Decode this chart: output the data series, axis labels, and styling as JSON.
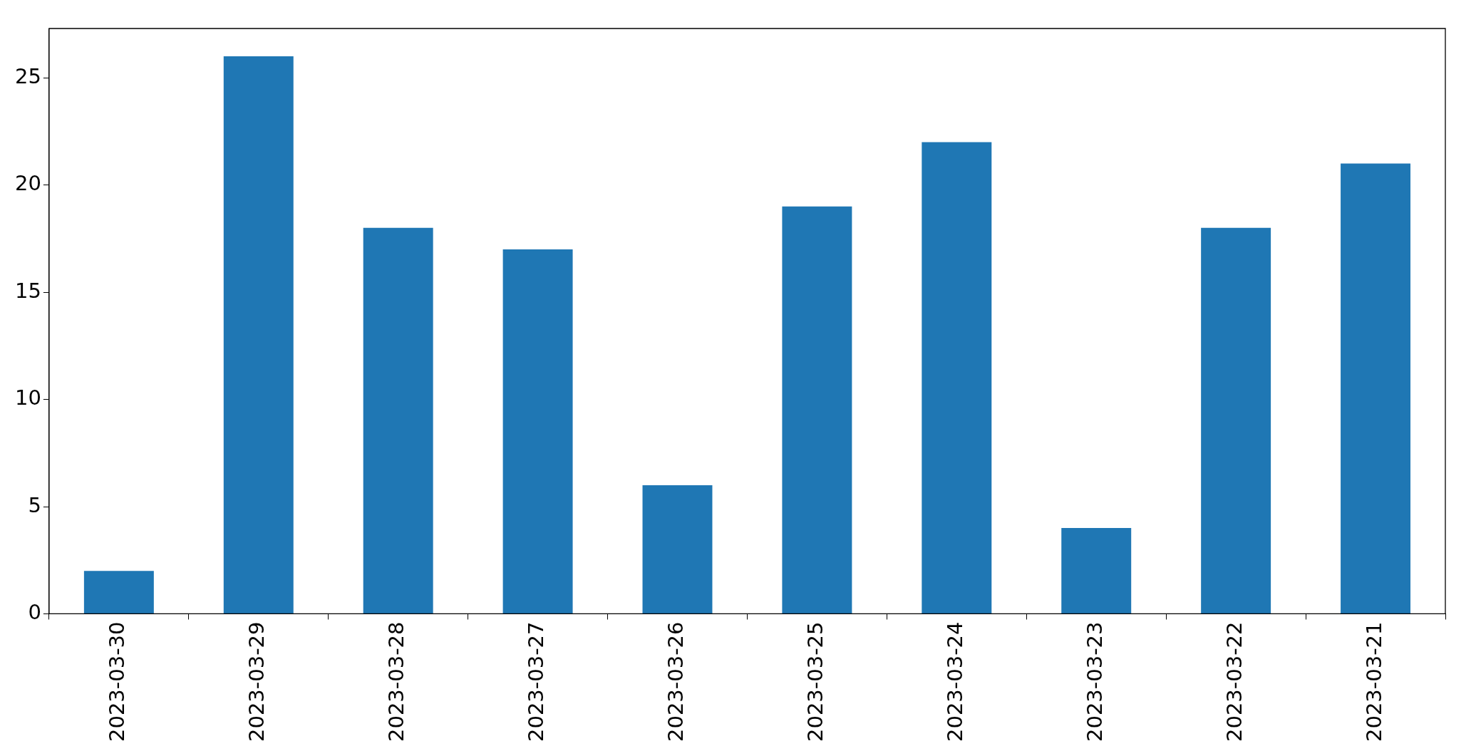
{
  "chart_data": {
    "type": "bar",
    "categories": [
      "2023-03-30",
      "2023-03-29",
      "2023-03-28",
      "2023-03-27",
      "2023-03-26",
      "2023-03-25",
      "2023-03-24",
      "2023-03-23",
      "2023-03-22",
      "2023-03-21"
    ],
    "values": [
      2,
      26,
      18,
      17,
      6,
      19,
      22,
      4,
      18,
      21
    ],
    "color": "#1f77b4",
    "ylim": [
      0,
      27.3
    ],
    "yticks": [
      0,
      5,
      10,
      15,
      20,
      25
    ],
    "grid": false,
    "legend": false
  }
}
